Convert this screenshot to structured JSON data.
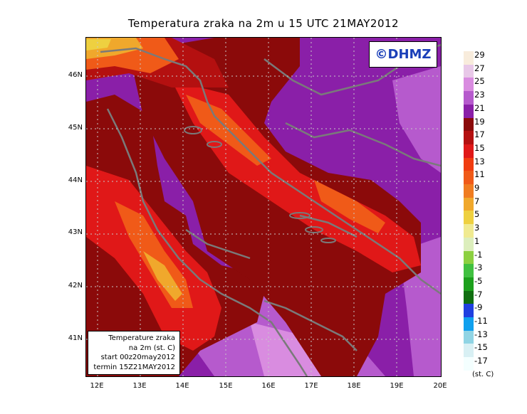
{
  "title": "Temperatura zraka na 2m u 15 UTC 21MAY2012",
  "brand": "©DHMZ",
  "info": {
    "line1": "Temperature zraka",
    "line2": "na 2m (st. C)",
    "line3": "start 00z20may2012",
    "line4": "termin 15Z21MAY2012"
  },
  "lat_ticks": [
    "46N",
    "45N",
    "44N",
    "43N",
    "42N",
    "41N"
  ],
  "lon_ticks": [
    "12E",
    "13E",
    "14E",
    "15E",
    "16E",
    "17E",
    "18E",
    "19E",
    "20E"
  ],
  "legend": {
    "units": "(st. C)",
    "labels": [
      "29",
      "27",
      "25",
      "23",
      "21",
      "19",
      "17",
      "15",
      "13",
      "11",
      "9",
      "7",
      "5",
      "3",
      "1",
      "-1",
      "-3",
      "-5",
      "-7",
      "-9",
      "-11",
      "-13",
      "-15",
      "-17"
    ],
    "colors": [
      "#f8ecdc",
      "#e8c8e8",
      "#d98ce0",
      "#b65acd",
      "#8a1fa8",
      "#8b0a0a",
      "#b41010",
      "#e01818",
      "#f03c10",
      "#f05a18",
      "#f07c20",
      "#f0a82c",
      "#eed040",
      "#f0ea90",
      "#dceebc",
      "#8cd040",
      "#40c040",
      "#1ca01c",
      "#106e10",
      "#2040e0",
      "#10a0ee",
      "#90d4e4",
      "#d8f0f4",
      "#f4ffff"
    ]
  },
  "map": {
    "lat_range": [
      40.3,
      46.8
    ],
    "lon_range": [
      11.75,
      20.0
    ],
    "field": "air temperature at 2 m (°C)",
    "colors": {
      "lowland_warm": "#8b0a0a",
      "sea": "#8a1fa8",
      "coast_hot": "#b41010",
      "mountain_cool": "#e01818",
      "high_mountain": "#f05a18",
      "highest": "#f0a82c",
      "sea_cool": "#b65acd",
      "coast_line": "#7a7a7a",
      "grid": "#c8c8c8"
    }
  }
}
